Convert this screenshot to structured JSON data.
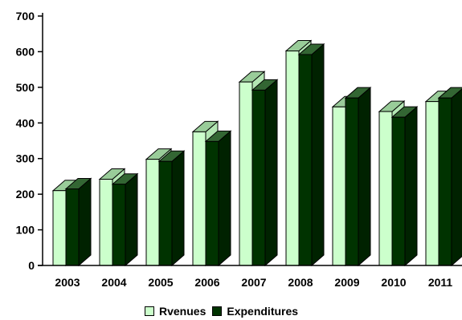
{
  "chart_data": {
    "type": "bar",
    "categories": [
      "2003",
      "2004",
      "2005",
      "2006",
      "2007",
      "2008",
      "2009",
      "2010",
      "2011"
    ],
    "series": [
      {
        "name": "Rvenues",
        "values": [
          210,
          242,
          298,
          375,
          515,
          602,
          445,
          432,
          460
        ]
      },
      {
        "name": "Expenditures",
        "values": [
          215,
          228,
          292,
          348,
          492,
          592,
          470,
          416,
          470
        ]
      }
    ],
    "ylim": [
      0,
      700
    ],
    "yticks": [
      0,
      100,
      200,
      300,
      400,
      500,
      600,
      700
    ],
    "grid": false,
    "legend_position": "bottom",
    "style": "3d",
    "colors": {
      "Rvenues": "#ccffcc",
      "Rvenues_top": "#99cc99",
      "Rvenues_side": "#b3e6b3",
      "Expenditures": "#003300",
      "Expenditures_top": "#336633",
      "Expenditures_side": "#002200"
    }
  },
  "legend": {
    "revenues_label": "Rvenues",
    "expenditures_label": "Expenditures"
  }
}
